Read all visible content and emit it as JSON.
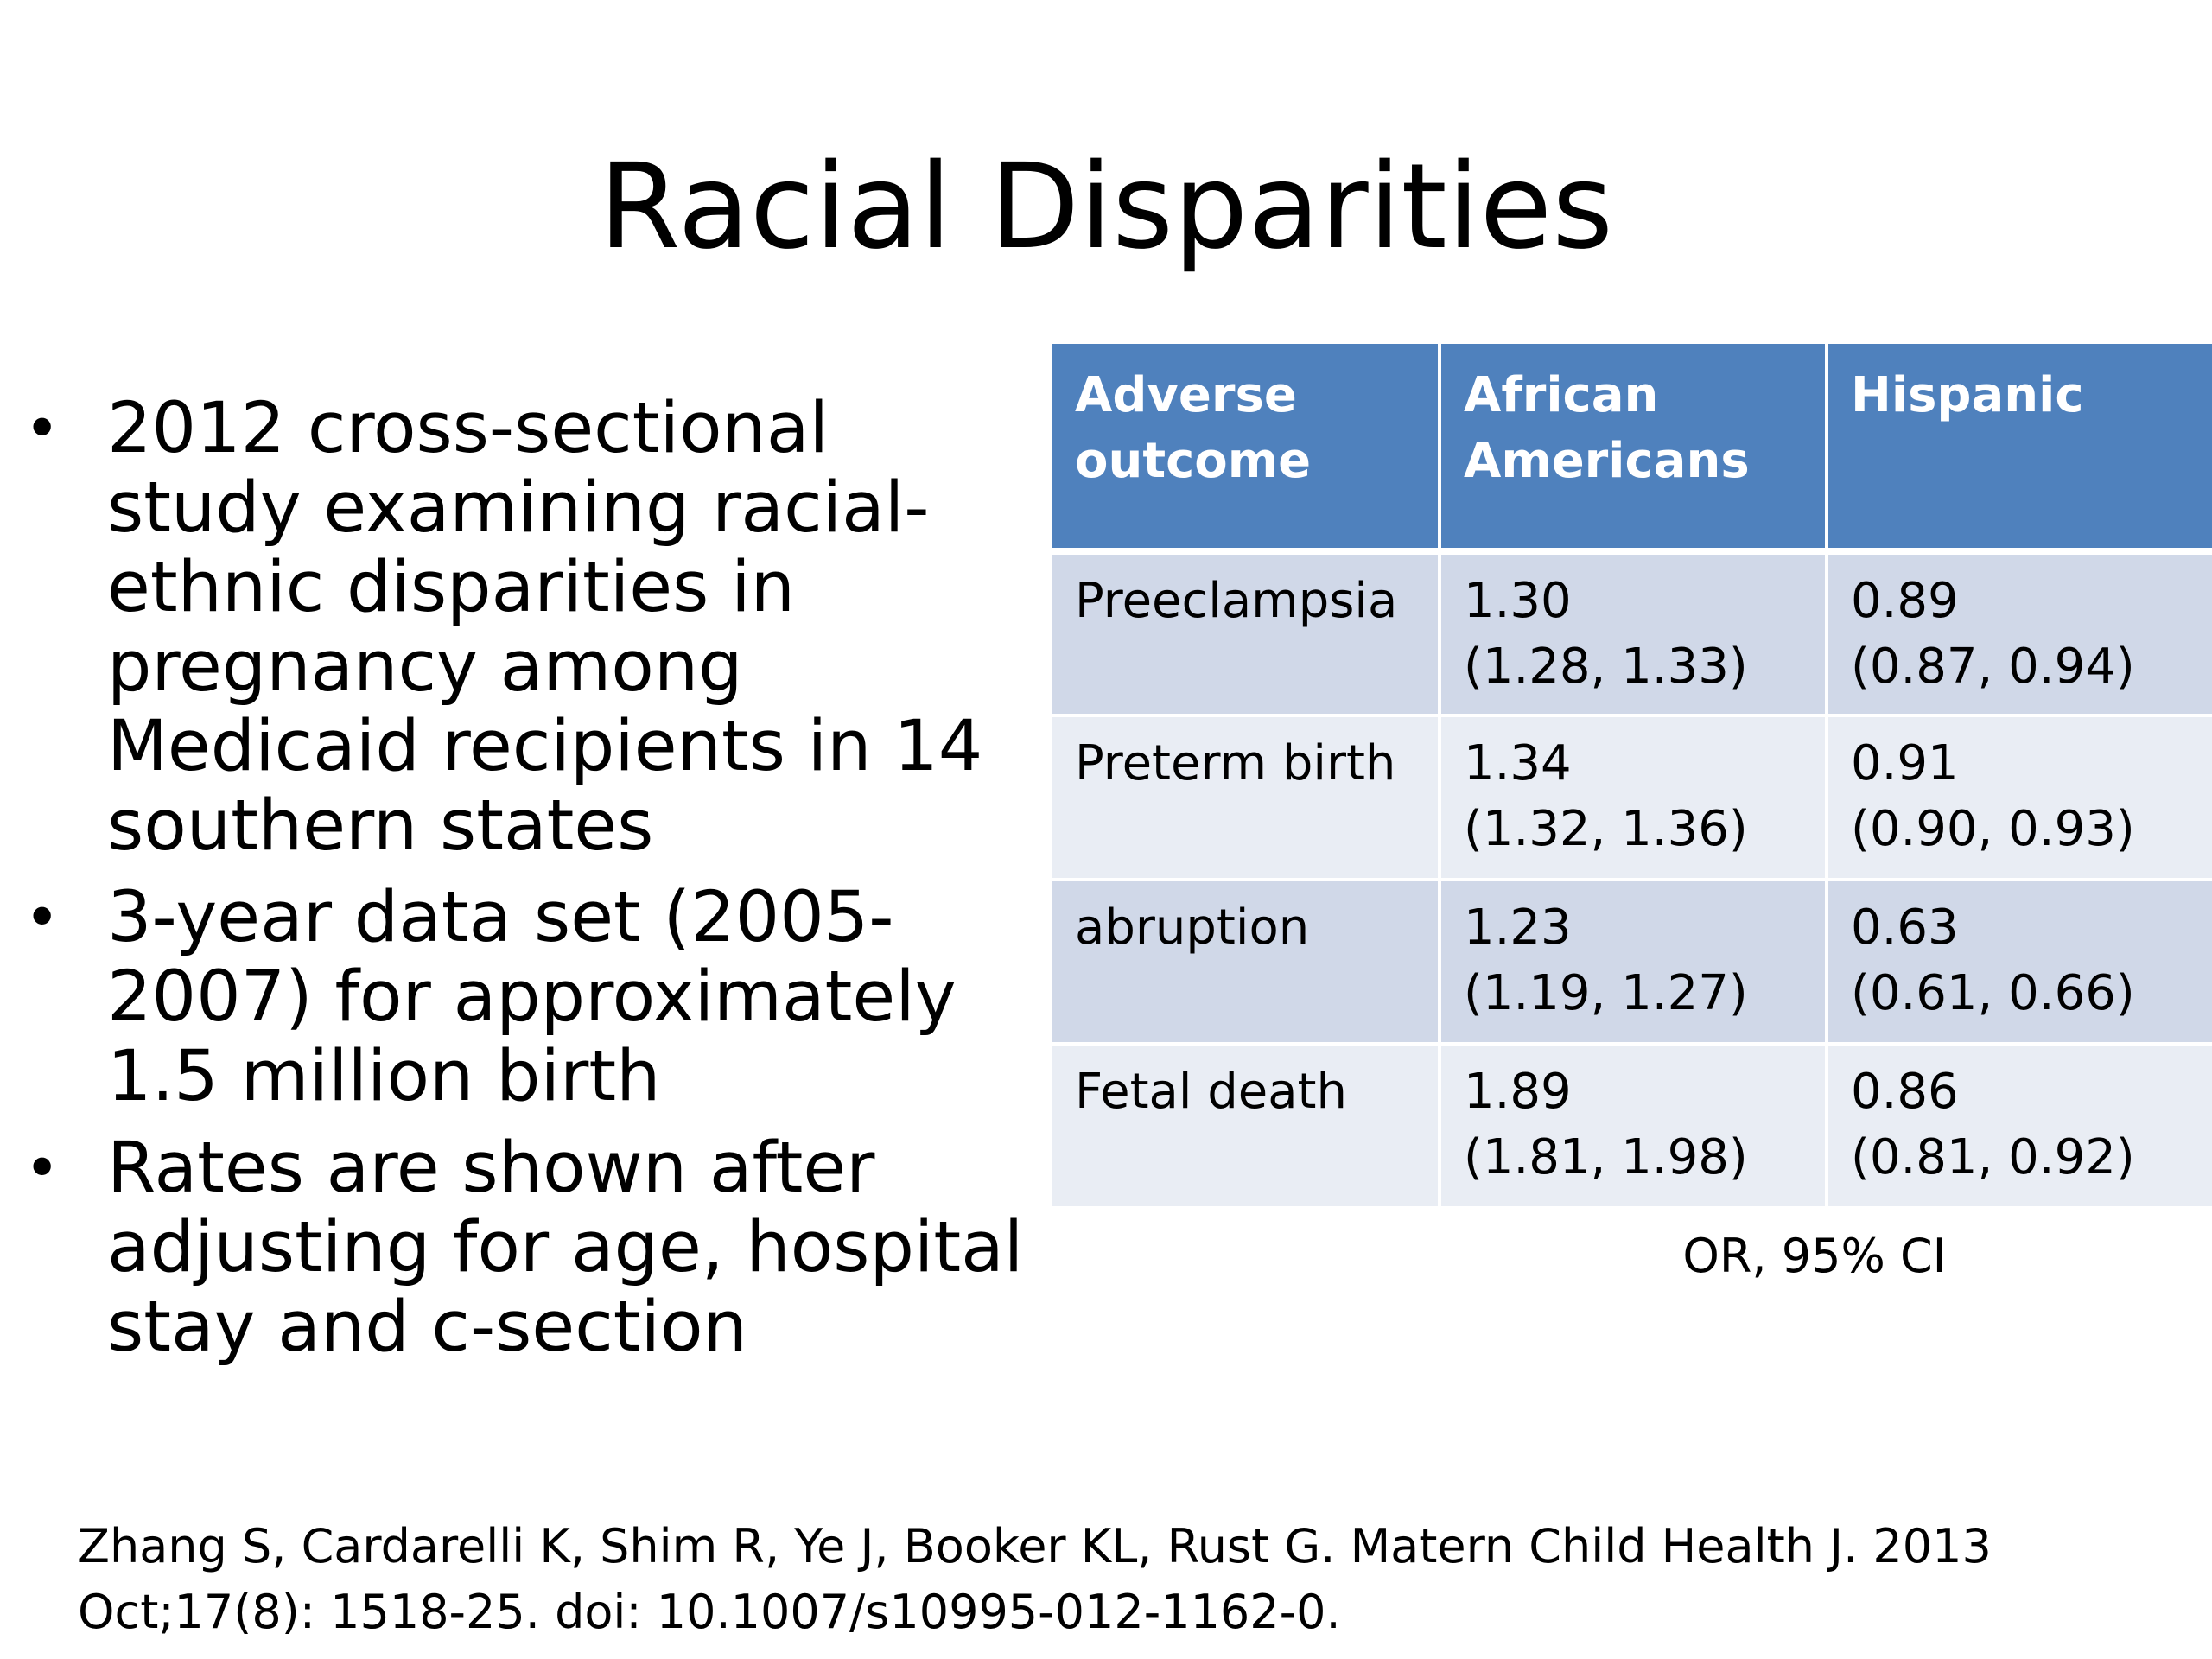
{
  "slide": {
    "title": "Racial Disparities"
  },
  "bullets": [
    {
      "text": "2012 cross-sectional study examining racial-ethnic disparities in pregnancy among Medicaid recipients in 14 southern states"
    },
    {
      "text": "3-year data set (2005-2007) for approximately 1.5 million birth"
    },
    {
      "text": "Rates are shown after adjusting for age, hospital stay and c-section"
    }
  ],
  "bullet_symbol": "•",
  "table": {
    "headers": [
      "Adverse outcome",
      "African Americans",
      "Hispanic"
    ],
    "rows": [
      {
        "outcome": "Preeclampsia",
        "african_americans": {
          "or": "1.30",
          "ci": "(1.28, 1.33)"
        },
        "hispanic": {
          "or": "0.89",
          "ci": "(0.87, 0.94)"
        }
      },
      {
        "outcome": "Preterm birth",
        "african_americans": {
          "or": "1.34",
          "ci": "(1.32, 1.36)"
        },
        "hispanic": {
          "or": "0.91",
          "ci": "(0.90, 0.93)"
        }
      },
      {
        "outcome": "abruption",
        "african_americans": {
          "or": "1.23",
          "ci": "(1.19, 1.27)"
        },
        "hispanic": {
          "or": "0.63",
          "ci": "(0.61, 0.66)"
        }
      },
      {
        "outcome": "Fetal death",
        "african_americans": {
          "or": "1.89",
          "ci": "(1.81, 1.98)"
        },
        "hispanic": {
          "or": "0.86",
          "ci": "(0.81, 0.92)"
        }
      }
    ],
    "caption": "OR, 95% CI"
  },
  "citation": "Zhang S, Cardarelli K, Shim R, Ye J, Booker KL, Rust G. Matern Child Health J. 2013 Oct;17(8): 1518-25. doi: 10.1007/s10995-012-1162-0.",
  "colors": {
    "header_bg": "#4f81bd",
    "row_odd_bg": "#d0d8e8",
    "row_even_bg": "#e9edf4"
  }
}
